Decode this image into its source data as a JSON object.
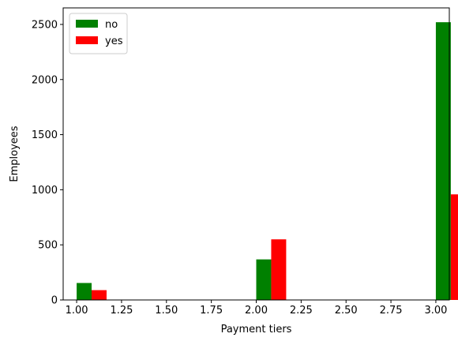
{
  "chart_data": {
    "type": "bar",
    "title": "",
    "xlabel": "Payment tiers",
    "ylabel": "Employees",
    "xlim": [
      0.925,
      3.075
    ],
    "ylim": [
      0,
      2650
    ],
    "x_ticks": [
      "1.00",
      "1.25",
      "1.50",
      "1.75",
      "2.00",
      "2.25",
      "2.50",
      "2.75",
      "3.00"
    ],
    "y_ticks": [
      "0",
      "500",
      "1000",
      "1500",
      "2000",
      "2500"
    ],
    "grid": false,
    "legend_position": "top-left",
    "series": [
      {
        "name": "no",
        "color": "#008000",
        "points": [
          {
            "x": 1,
            "y": 154
          },
          {
            "x": 2,
            "y": 368
          },
          {
            "x": 3,
            "y": 2520
          }
        ]
      },
      {
        "name": "yes",
        "color": "#ff0000",
        "points": [
          {
            "x": 1,
            "y": 89
          },
          {
            "x": 2,
            "y": 550
          },
          {
            "x": 3,
            "y": 958
          }
        ]
      }
    ]
  }
}
